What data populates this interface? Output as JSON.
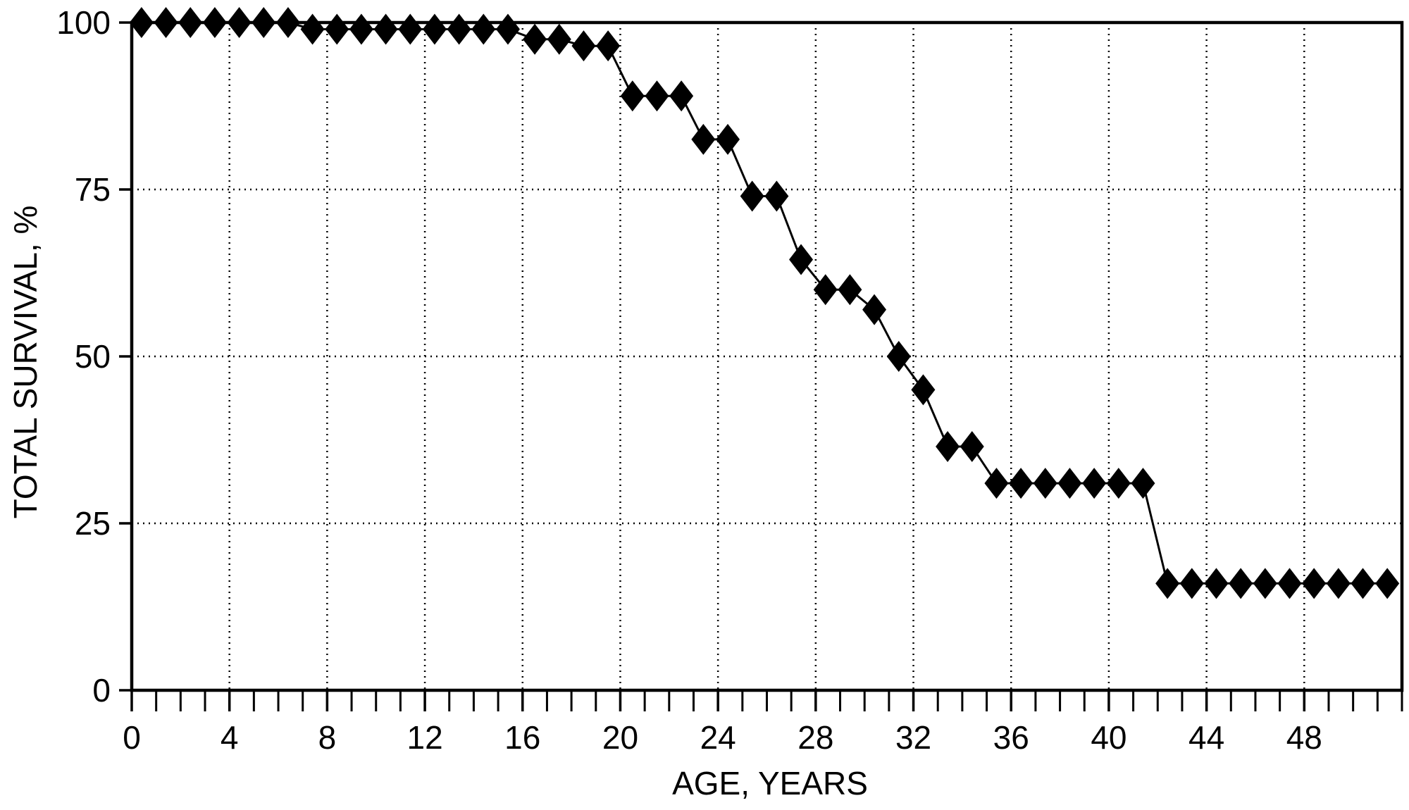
{
  "chart_data": {
    "type": "line",
    "title": "",
    "xlabel": "AGE, YEARS",
    "ylabel": "TOTAL SURVIVAL, %",
    "xlim": [
      0,
      52
    ],
    "ylim": [
      0,
      100
    ],
    "x_ticks": [
      0,
      4,
      8,
      12,
      16,
      20,
      24,
      28,
      32,
      36,
      40,
      44,
      48
    ],
    "x_minor_step": 1,
    "y_ticks": [
      0,
      25,
      50,
      75,
      100
    ],
    "grid": "dotted",
    "marker": "diamond",
    "color": "#000000",
    "series": [
      {
        "x": [
          0.4,
          1.4,
          2.4,
          3.4,
          4.4,
          5.4,
          6.4,
          7.4,
          8.4,
          9.4,
          10.4,
          11.4,
          12.4,
          13.4,
          14.4,
          15.4,
          16.5,
          17.5,
          18.5,
          19.5,
          20.5,
          21.5,
          22.5,
          23.4,
          24.4,
          25.4,
          26.4,
          27.4,
          28.4,
          29.4,
          30.4,
          31.4,
          32.4,
          33.4,
          34.4,
          35.4,
          36.4,
          37.4,
          38.4,
          39.4,
          40.4,
          41.4,
          42.4,
          43.4,
          44.4,
          45.4,
          46.4,
          47.4,
          48.4,
          49.4,
          50.4,
          51.4
        ],
        "y": [
          100,
          100,
          100,
          100,
          100,
          100,
          100,
          99,
          99,
          99,
          99,
          99,
          99,
          99,
          99,
          99,
          97.5,
          97.5,
          96.5,
          96.5,
          89,
          89,
          89,
          82.5,
          82.5,
          74,
          74,
          64.5,
          60,
          60,
          57,
          50,
          45,
          36.5,
          36.5,
          31,
          31,
          31,
          31,
          31,
          31,
          31,
          16,
          16,
          16,
          16,
          16,
          16,
          16,
          16,
          16,
          16
        ]
      }
    ]
  }
}
